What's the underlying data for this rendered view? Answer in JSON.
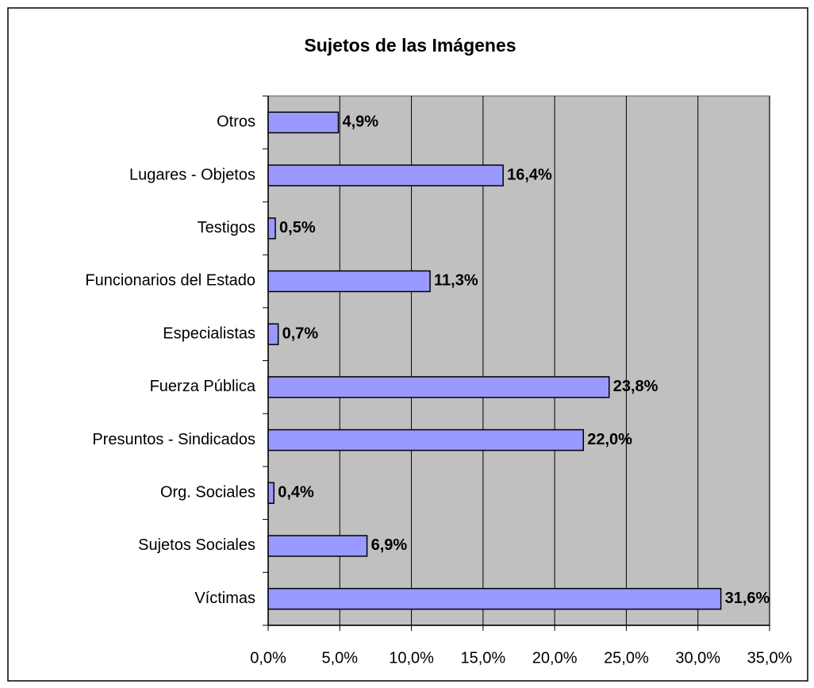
{
  "chart_data": {
    "type": "barh",
    "title": "Sujetos de las Imágenes",
    "categories": [
      "Otros",
      "Lugares - Objetos",
      "Testigos",
      "Funcionarios del Estado",
      "Especialistas",
      "Fuerza Pública",
      "Presuntos - Sindicados",
      "Org. Sociales",
      "Sujetos Sociales",
      "Víctimas"
    ],
    "values": [
      4.9,
      16.4,
      0.5,
      11.3,
      0.7,
      23.8,
      22.0,
      0.4,
      6.9,
      31.6
    ],
    "value_labels": [
      "4,9%",
      "16,4%",
      "0,5%",
      "11,3%",
      "0,7%",
      "23,8%",
      "22,0%",
      "0,4%",
      "6,9%",
      "31,6%"
    ],
    "color": "#9999ff",
    "xlim": [
      0,
      35
    ],
    "xticks": [
      {
        "value": 0,
        "label": "0,0%"
      },
      {
        "value": 5,
        "label": "5,0%"
      },
      {
        "value": 10,
        "label": "10,0%"
      },
      {
        "value": 15,
        "label": "15,0%"
      },
      {
        "value": 20,
        "label": "20,0%"
      },
      {
        "value": 25,
        "label": "25,0%"
      },
      {
        "value": 30,
        "label": "30,0%"
      },
      {
        "value": 35,
        "label": "35,0%"
      }
    ],
    "grid": true
  }
}
